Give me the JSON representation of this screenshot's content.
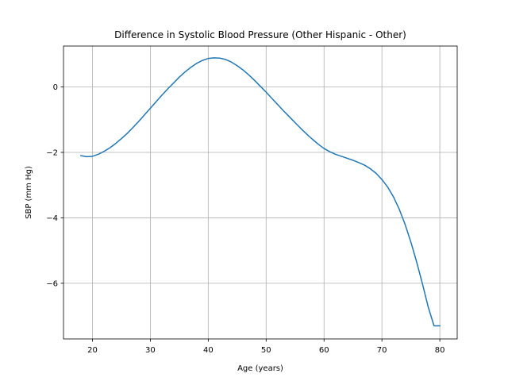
{
  "chart_data": {
    "type": "line",
    "title": "Difference in Systolic Blood Pressure (Other Hispanic - Other)",
    "xlabel": "Age (years)",
    "ylabel": "SBP (mm Hg)",
    "xlim": [
      15,
      83
    ],
    "ylim": [
      -7.7,
      1.25
    ],
    "xticks": [
      20,
      30,
      40,
      50,
      60,
      70,
      80
    ],
    "yticks": [
      -6,
      -4,
      -2,
      0
    ],
    "grid": true,
    "series": [
      {
        "color": "#1f77b4",
        "x": [
          18,
          19,
          20,
          21,
          22,
          23,
          24,
          25,
          26,
          27,
          28,
          29,
          30,
          31,
          32,
          33,
          34,
          35,
          36,
          37,
          38,
          39,
          40,
          41,
          42,
          43,
          44,
          45,
          46,
          47,
          48,
          49,
          50,
          51,
          52,
          53,
          54,
          55,
          56,
          57,
          58,
          59,
          60,
          61,
          62,
          63,
          64,
          65,
          66,
          67,
          68,
          69,
          70,
          71,
          72,
          73,
          74,
          75,
          76,
          77,
          78,
          79,
          80
        ],
        "y": [
          -2.1,
          -2.13,
          -2.12,
          -2.06,
          -1.97,
          -1.86,
          -1.73,
          -1.58,
          -1.42,
          -1.24,
          -1.05,
          -0.85,
          -0.65,
          -0.45,
          -0.25,
          -0.06,
          0.12,
          0.3,
          0.46,
          0.6,
          0.72,
          0.81,
          0.87,
          0.89,
          0.88,
          0.84,
          0.76,
          0.65,
          0.52,
          0.37,
          0.2,
          0.02,
          -0.16,
          -0.35,
          -0.54,
          -0.73,
          -0.91,
          -1.09,
          -1.27,
          -1.44,
          -1.6,
          -1.75,
          -1.88,
          -1.98,
          -2.06,
          -2.12,
          -2.18,
          -2.24,
          -2.31,
          -2.39,
          -2.5,
          -2.64,
          -2.83,
          -3.06,
          -3.36,
          -3.74,
          -4.2,
          -4.74,
          -5.35,
          -6.02,
          -6.73,
          -7.3,
          -7.3
        ]
      }
    ]
  }
}
